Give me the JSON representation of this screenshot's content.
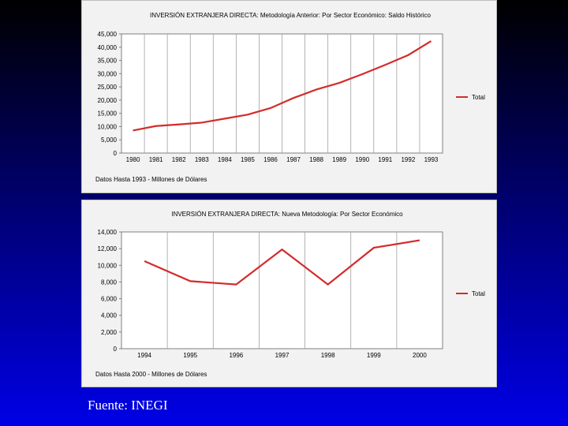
{
  "chart_data": [
    {
      "type": "line",
      "title": "INVERSIÓN EXTRANJERA DIRECTA: Metodología Anterior: Por Sector Económico: Saldo Histórico",
      "categories": [
        "1980",
        "1981",
        "1982",
        "1983",
        "1984",
        "1985",
        "1986",
        "1987",
        "1988",
        "1989",
        "1990",
        "1991",
        "1992",
        "1993"
      ],
      "series": [
        {
          "name": "Total",
          "values": [
            8500,
            10200,
            10800,
            11500,
            13000,
            14500,
            17000,
            20800,
            24000,
            26500,
            29800,
            33300,
            37000,
            42300
          ]
        }
      ],
      "ylim": [
        0,
        45000
      ],
      "yticks": [
        "0",
        "5,000",
        "10,000",
        "15,000",
        "20,000",
        "25,000",
        "30,000",
        "35,000",
        "40,000",
        "45,000"
      ],
      "tick_step": 5000,
      "note": "Datos Hasta 1993 - Millones de Dólares",
      "legend": "Total",
      "color": "#d42b2b"
    },
    {
      "type": "line",
      "title": "INVERSIÓN EXTRANJERA DIRECTA: Nueva Metodología: Por Sector Económico",
      "categories": [
        "1994",
        "1995",
        "1996",
        "1997",
        "1998",
        "1999",
        "2000"
      ],
      "series": [
        {
          "name": "Total",
          "values": [
            10500,
            8100,
            7700,
            11900,
            7700,
            12100,
            13000
          ]
        }
      ],
      "ylim": [
        0,
        14000
      ],
      "yticks": [
        "0",
        "2,000",
        "4,000",
        "6,000",
        "8,000",
        "10,000",
        "12,000",
        "14,000"
      ],
      "tick_step": 2000,
      "note": "Datos Hasta 2000 - Millones de Dólares",
      "legend": "Total",
      "color": "#d42b2b"
    }
  ],
  "footer": {
    "source": "Fuente: INEGI"
  }
}
